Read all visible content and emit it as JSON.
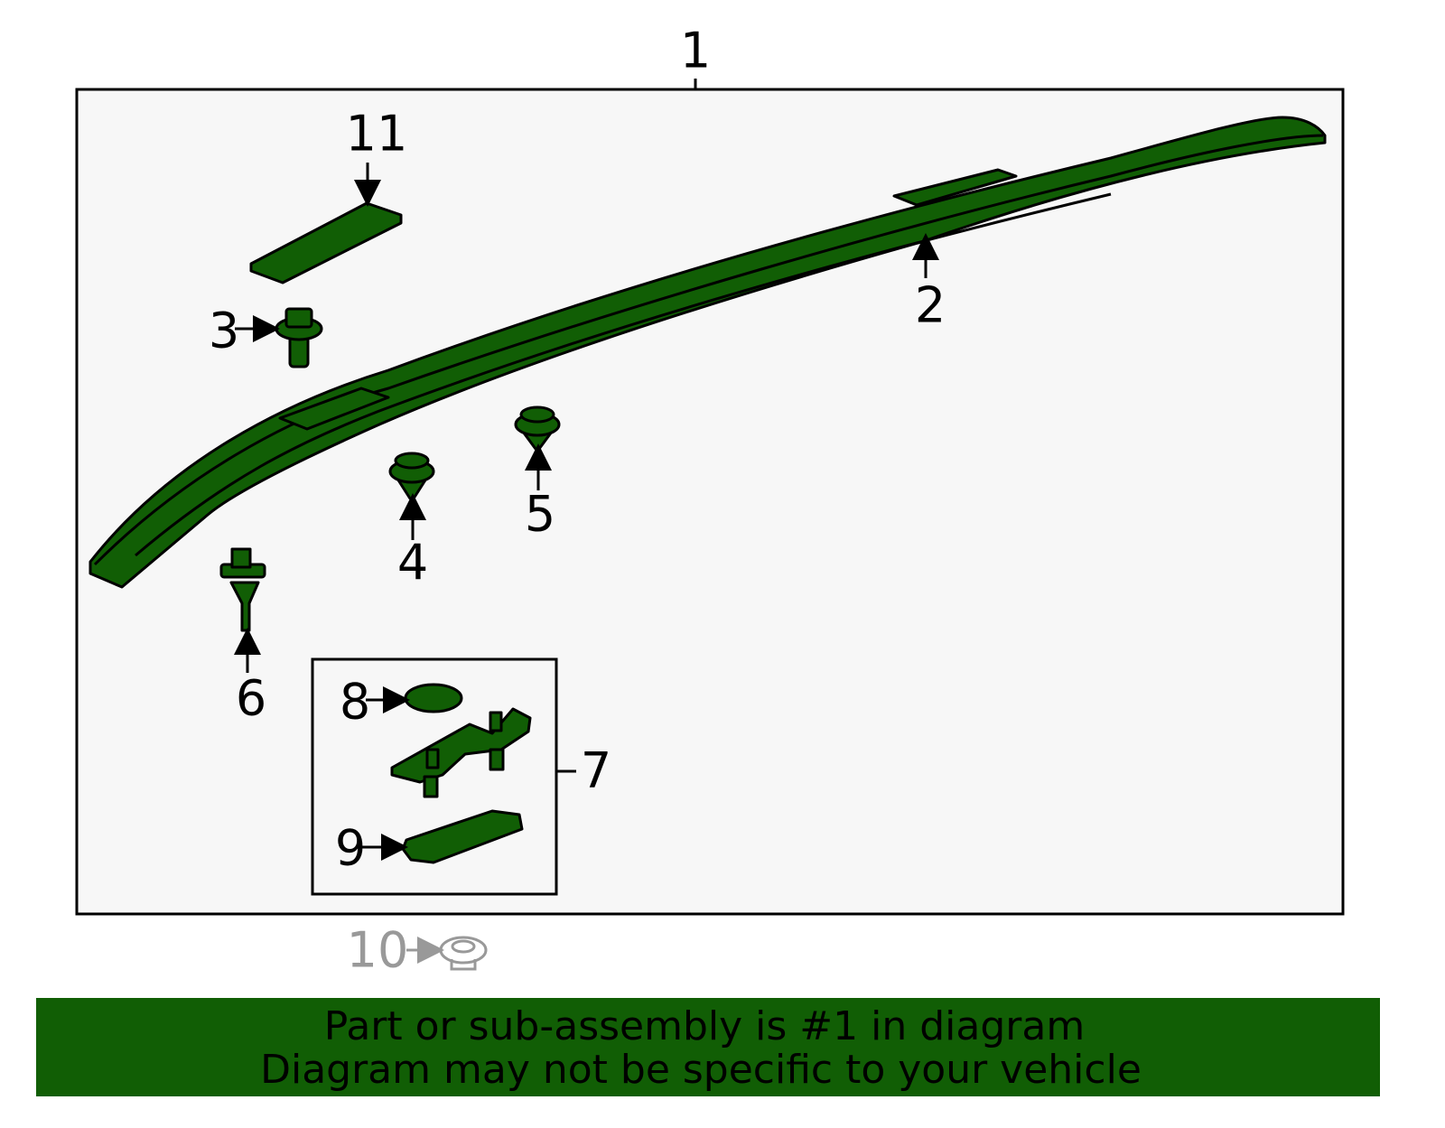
{
  "callouts": [
    "1",
    "2",
    "3",
    "4",
    "5",
    "6",
    "7",
    "8",
    "9",
    "10",
    "11"
  ],
  "footer": {
    "line1": "Part or sub-assembly is #1 in diagram",
    "line2": "Diagram may not be specific to your vehicle"
  }
}
